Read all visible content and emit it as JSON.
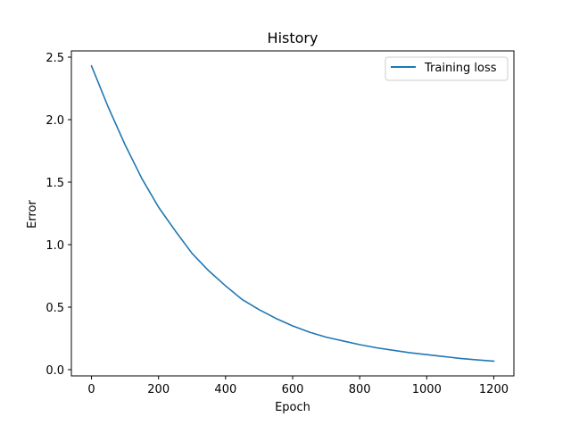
{
  "chart_data": {
    "type": "line",
    "title": "History",
    "xlabel": "Epoch",
    "ylabel": "Error",
    "xlim": [
      -60,
      1260
    ],
    "ylim": [
      -0.05,
      2.55
    ],
    "xticks": [
      0,
      200,
      400,
      600,
      800,
      1000,
      1200
    ],
    "yticks": [
      0.0,
      0.5,
      1.0,
      1.5,
      2.0,
      2.5
    ],
    "xtick_labels": [
      "0",
      "200",
      "400",
      "600",
      "800",
      "1000",
      "1200"
    ],
    "ytick_labels": [
      "0.0",
      "0.5",
      "1.0",
      "1.5",
      "2.0",
      "2.5"
    ],
    "grid": false,
    "legend_position": "top-right",
    "series": [
      {
        "name": "Training loss",
        "color": "#1f77b4",
        "x": [
          0,
          50,
          100,
          150,
          200,
          250,
          300,
          350,
          400,
          450,
          500,
          550,
          600,
          650,
          700,
          750,
          800,
          850,
          900,
          950,
          1000,
          1050,
          1100,
          1150,
          1200
        ],
        "y": [
          2.43,
          2.1,
          1.8,
          1.53,
          1.3,
          1.11,
          0.93,
          0.79,
          0.67,
          0.56,
          0.48,
          0.41,
          0.35,
          0.3,
          0.26,
          0.23,
          0.2,
          0.175,
          0.155,
          0.135,
          0.12,
          0.105,
          0.09,
          0.078,
          0.068
        ]
      }
    ]
  }
}
